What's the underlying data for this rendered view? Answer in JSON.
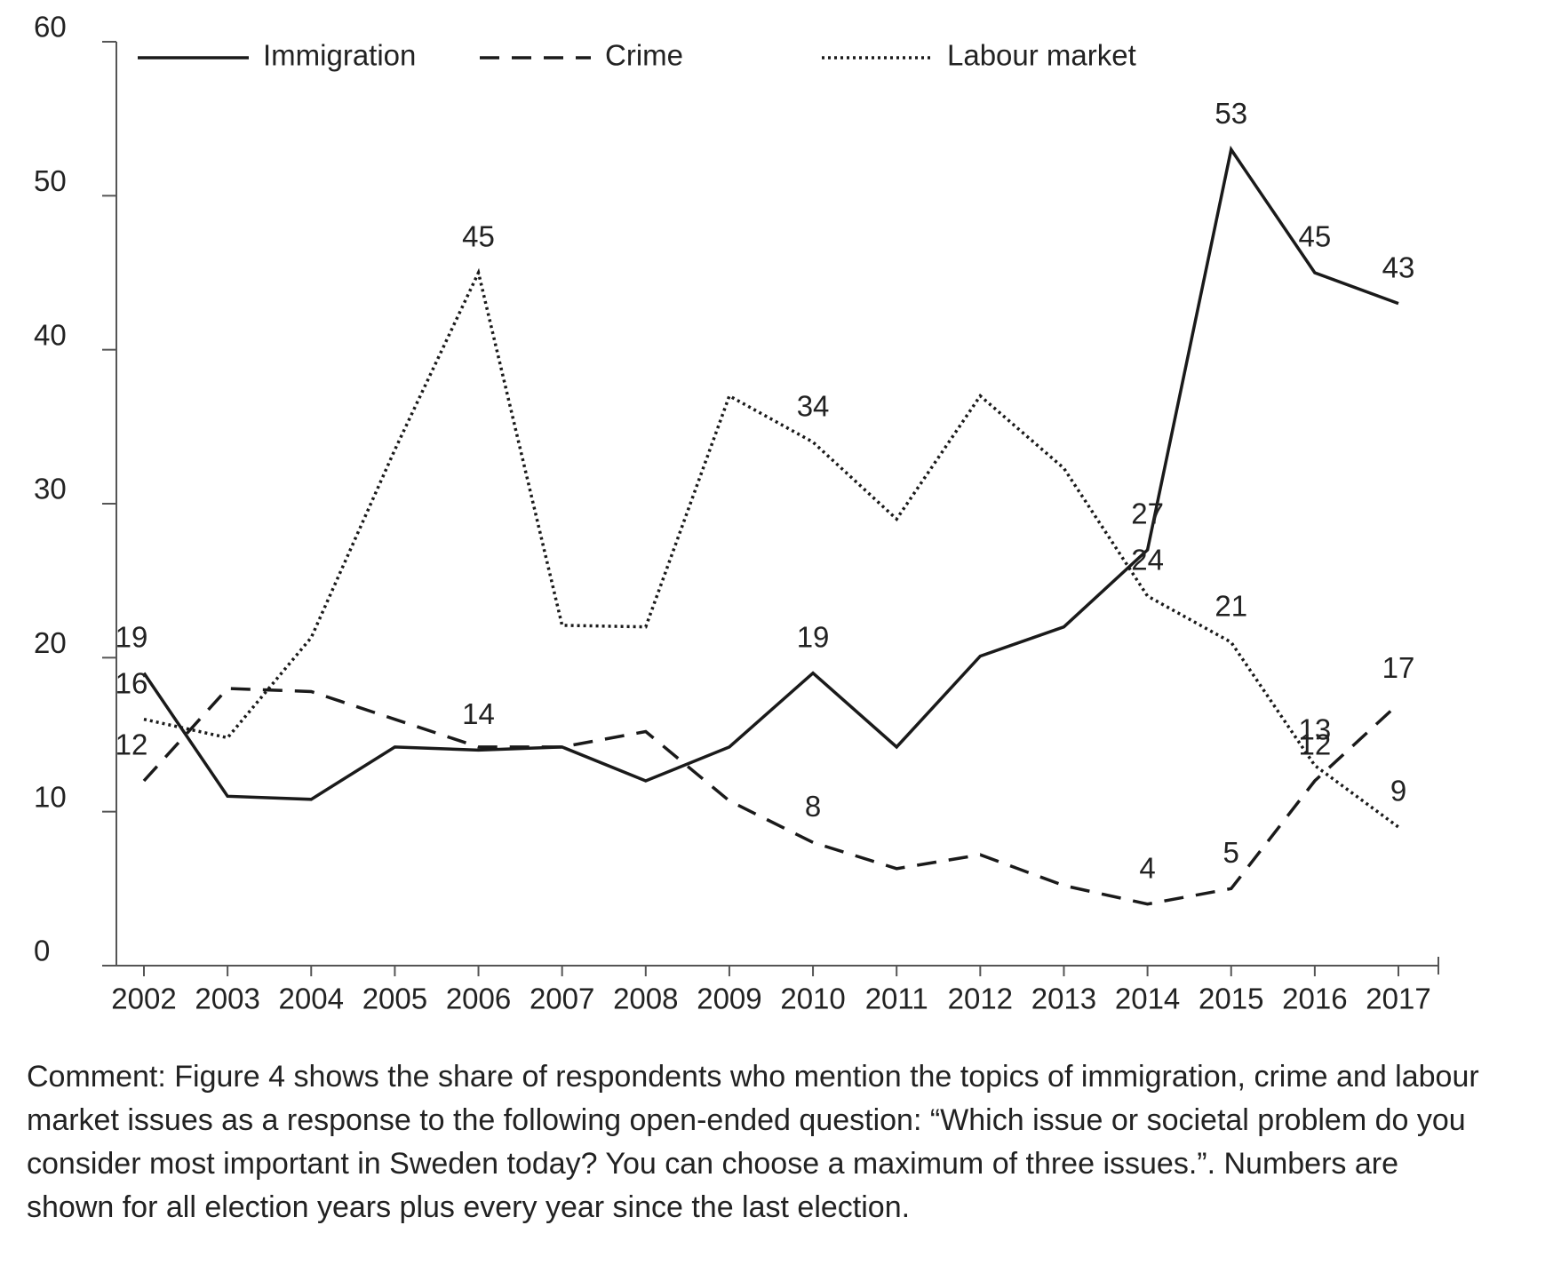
{
  "chart_data": {
    "type": "line",
    "categories": [
      "2002",
      "2003",
      "2004",
      "2005",
      "2006",
      "2007",
      "2008",
      "2009",
      "2010",
      "2011",
      "2012",
      "2013",
      "2014",
      "2015",
      "2016",
      "2017"
    ],
    "series": [
      {
        "name": "Immigration",
        "color": "#1a1a1a",
        "dash": "solid",
        "values": [
          19,
          11,
          10.8,
          14.2,
          14,
          14.2,
          12,
          14.2,
          19,
          14.2,
          20.1,
          22,
          27,
          53,
          45,
          43
        ],
        "value_labels": [
          "19",
          null,
          null,
          null,
          "14",
          null,
          null,
          null,
          "19",
          null,
          null,
          null,
          "27",
          "53",
          "45",
          "43"
        ]
      },
      {
        "name": "Crime",
        "color": "#1a1a1a",
        "dash": "dashed",
        "values": [
          12,
          18,
          17.8,
          16,
          14.2,
          14.2,
          15.2,
          10.7,
          8,
          6.3,
          7.2,
          5.2,
          4,
          5,
          12,
          17
        ],
        "value_labels": [
          "12",
          null,
          null,
          null,
          null,
          null,
          null,
          null,
          "8",
          null,
          null,
          null,
          "4",
          "5",
          "12",
          "17"
        ]
      },
      {
        "name": "Labour market",
        "color": "#1a1a1a",
        "dash": "dotted",
        "values": [
          16,
          14.8,
          21.3,
          33.5,
          45,
          22.1,
          22,
          37,
          34,
          29,
          37,
          32.3,
          24,
          21,
          13,
          9
        ],
        "value_labels": [
          "16",
          null,
          null,
          null,
          "45",
          null,
          null,
          null,
          "34",
          null,
          null,
          null,
          "24",
          "21",
          "13",
          "9"
        ]
      }
    ],
    "ylim": [
      0,
      60
    ],
    "yticks": [
      0,
      10,
      20,
      30,
      40,
      50,
      60
    ],
    "grid": false,
    "legend": "top",
    "note": "Comment: Figure 4 shows the share of respondents who mention the topics of immigration, crime and labour market issues as a response to the following open-ended question: “Which issue or societal problem do you consider most important in Sweden today? You can choose a maximum of three issues.”. Numbers are shown for all election years plus every year since the last election."
  }
}
